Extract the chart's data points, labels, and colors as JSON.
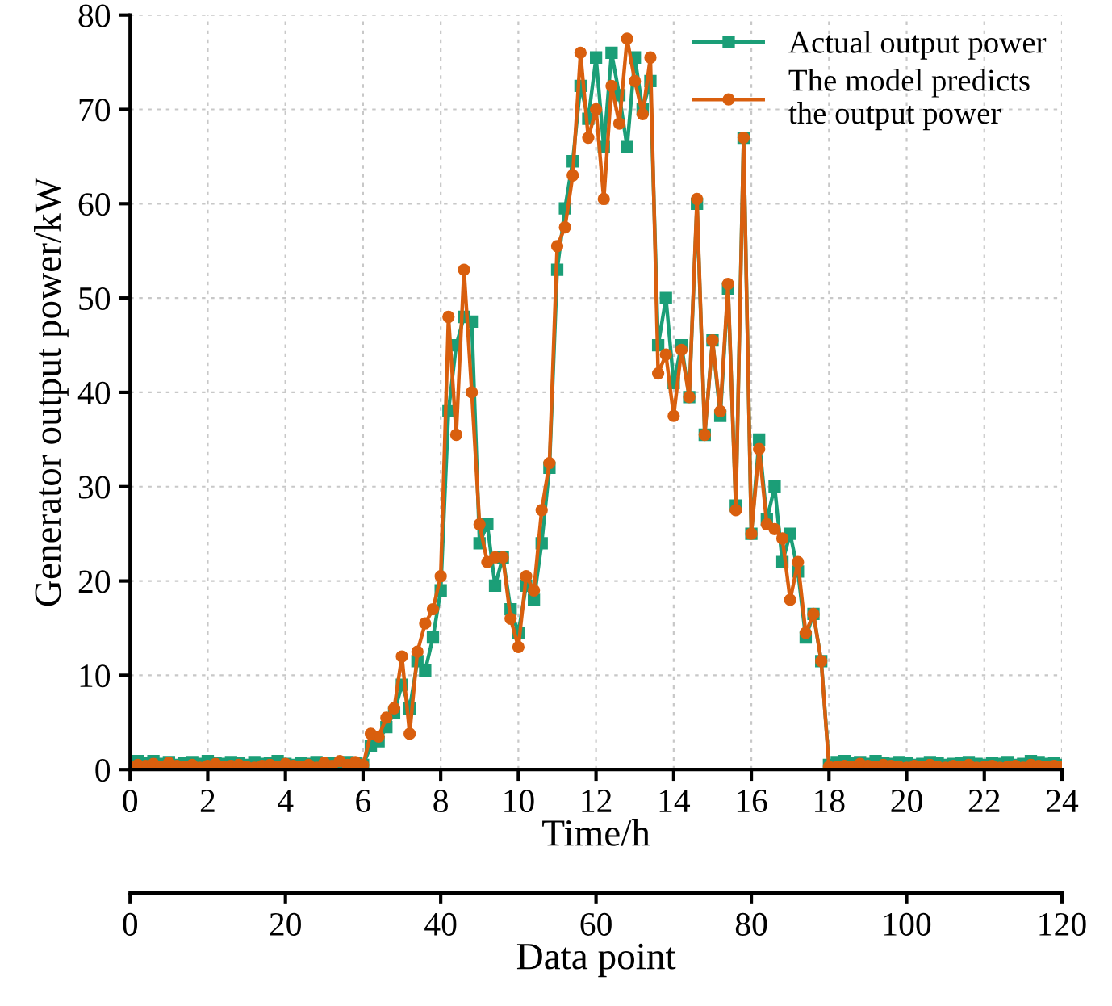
{
  "chart_data": {
    "type": "line",
    "xlabel": "Time/h",
    "ylabel": "Generator output power/kW",
    "x2label": "Data point",
    "x": [
      0,
      0.2,
      0.4,
      0.6,
      0.8,
      1,
      1.2,
      1.4,
      1.6,
      1.8,
      2,
      2.2,
      2.4,
      2.6,
      2.8,
      3,
      3.2,
      3.4,
      3.6,
      3.8,
      4,
      4.2,
      4.4,
      4.6,
      4.8,
      5,
      5.2,
      5.4,
      5.6,
      5.8,
      6,
      6.2,
      6.4,
      6.6,
      6.8,
      7,
      7.2,
      7.4,
      7.6,
      7.8,
      8,
      8.2,
      8.4,
      8.6,
      8.8,
      9,
      9.2,
      9.4,
      9.6,
      9.8,
      10,
      10.2,
      10.4,
      10.6,
      10.8,
      11,
      11.2,
      11.4,
      11.6,
      11.8,
      12,
      12.2,
      12.4,
      12.6,
      12.8,
      13,
      13.2,
      13.4,
      13.6,
      13.8,
      14,
      14.2,
      14.4,
      14.6,
      14.8,
      15,
      15.2,
      15.4,
      15.6,
      15.8,
      16,
      16.2,
      16.4,
      16.6,
      16.8,
      17,
      17.2,
      17.4,
      17.6,
      17.8,
      18,
      18.2,
      18.4,
      18.6,
      18.8,
      19,
      19.2,
      19.4,
      19.6,
      19.8,
      20,
      20.2,
      20.4,
      20.6,
      20.8,
      21,
      21.2,
      21.4,
      21.6,
      21.8,
      22,
      22.2,
      22.4,
      22.6,
      22.8,
      23,
      23.2,
      23.4,
      23.6,
      23.8,
      24
    ],
    "series": [
      {
        "name": "Actual output power",
        "color": "#1b9e77",
        "marker": "square",
        "values": [
          0.8,
          0.9,
          0.7,
          0.9,
          0.6,
          0.8,
          0.5,
          0.7,
          0.8,
          0.6,
          0.9,
          0.7,
          0.6,
          0.8,
          0.7,
          0.5,
          0.8,
          0.6,
          0.7,
          0.9,
          0.6,
          0.5,
          0.7,
          0.6,
          0.8,
          0.5,
          0.7,
          0.6,
          0.8,
          0.7,
          0.5,
          2.5,
          3,
          4.5,
          6,
          9,
          6.5,
          11.5,
          10.5,
          14,
          19,
          38,
          45,
          48,
          47.5,
          24,
          26,
          19.5,
          22.5,
          17,
          14.5,
          19.5,
          18,
          24,
          32,
          53,
          59.5,
          64.5,
          72.5,
          69,
          75.5,
          66,
          76,
          71.5,
          66,
          75.5,
          70,
          73,
          45,
          50,
          41,
          45,
          39.5,
          60,
          35.5,
          45.5,
          37.5,
          51,
          28,
          67,
          25,
          35,
          26.5,
          30,
          22,
          25,
          21,
          14,
          16.5,
          11.5,
          0.5,
          0.8,
          0.9,
          0.7,
          0.8,
          0.6,
          0.9,
          0.7,
          0.6,
          0.8,
          0.7,
          0.5,
          0.6,
          0.8,
          0.7,
          0.5,
          0.6,
          0.7,
          0.8,
          0.6,
          0.5,
          0.7,
          0.6,
          0.8,
          0.5,
          0.6,
          0.9,
          0.8,
          0.6,
          0.7,
          0.5
        ]
      },
      {
        "name": "The model predicts\nthe output power",
        "color": "#d95f0e",
        "marker": "circle",
        "values": [
          0.3,
          0.5,
          0.4,
          0.6,
          0.3,
          0.7,
          0.4,
          0.3,
          0.5,
          0.2,
          0.4,
          0.6,
          0.3,
          0.4,
          0.5,
          0.3,
          0.2,
          0.4,
          0.5,
          0.3,
          0.6,
          0.4,
          0.3,
          0.5,
          0.2,
          0.7,
          0.4,
          0.9,
          0.5,
          0.8,
          0.5,
          3.8,
          3.5,
          5.5,
          6.5,
          12,
          3.8,
          12.5,
          15.5,
          17,
          20.5,
          48,
          35.5,
          53,
          40,
          26,
          22,
          22.5,
          22.5,
          16,
          13,
          20.5,
          19,
          27.5,
          32.5,
          55.5,
          57.5,
          63,
          76,
          67,
          70,
          60.5,
          72.5,
          68.5,
          77.5,
          73,
          69.5,
          75.5,
          42,
          44,
          37.5,
          44.5,
          39.5,
          60.5,
          35.5,
          45.5,
          38,
          51.5,
          27.5,
          67,
          25,
          34,
          26,
          25.5,
          24.5,
          18,
          22,
          14.5,
          16.5,
          11.5,
          0.3,
          0.3,
          0.4,
          0.3,
          0.6,
          0.4,
          0.3,
          0.5,
          0.4,
          0.3,
          0.2,
          0.4,
          0.3,
          0.5,
          0.3,
          0.2,
          0.4,
          0.3,
          0.5,
          0.2,
          0.3,
          0.4,
          0.2,
          0.3,
          0.4,
          0.2,
          0.5,
          0.4,
          0.3,
          0.4,
          0.3
        ]
      }
    ],
    "xlim": [
      0,
      24
    ],
    "xticks": [
      0,
      2,
      4,
      6,
      8,
      10,
      12,
      14,
      16,
      18,
      20,
      22,
      24
    ],
    "ylim": [
      0,
      80
    ],
    "yticks": [
      0,
      10,
      20,
      30,
      40,
      50,
      60,
      70,
      80
    ],
    "x2lim": [
      0,
      120
    ],
    "x2ticks": [
      0,
      20,
      40,
      60,
      80,
      100,
      120
    ],
    "grid": true,
    "legend": "top right",
    "line_style": "solid"
  }
}
